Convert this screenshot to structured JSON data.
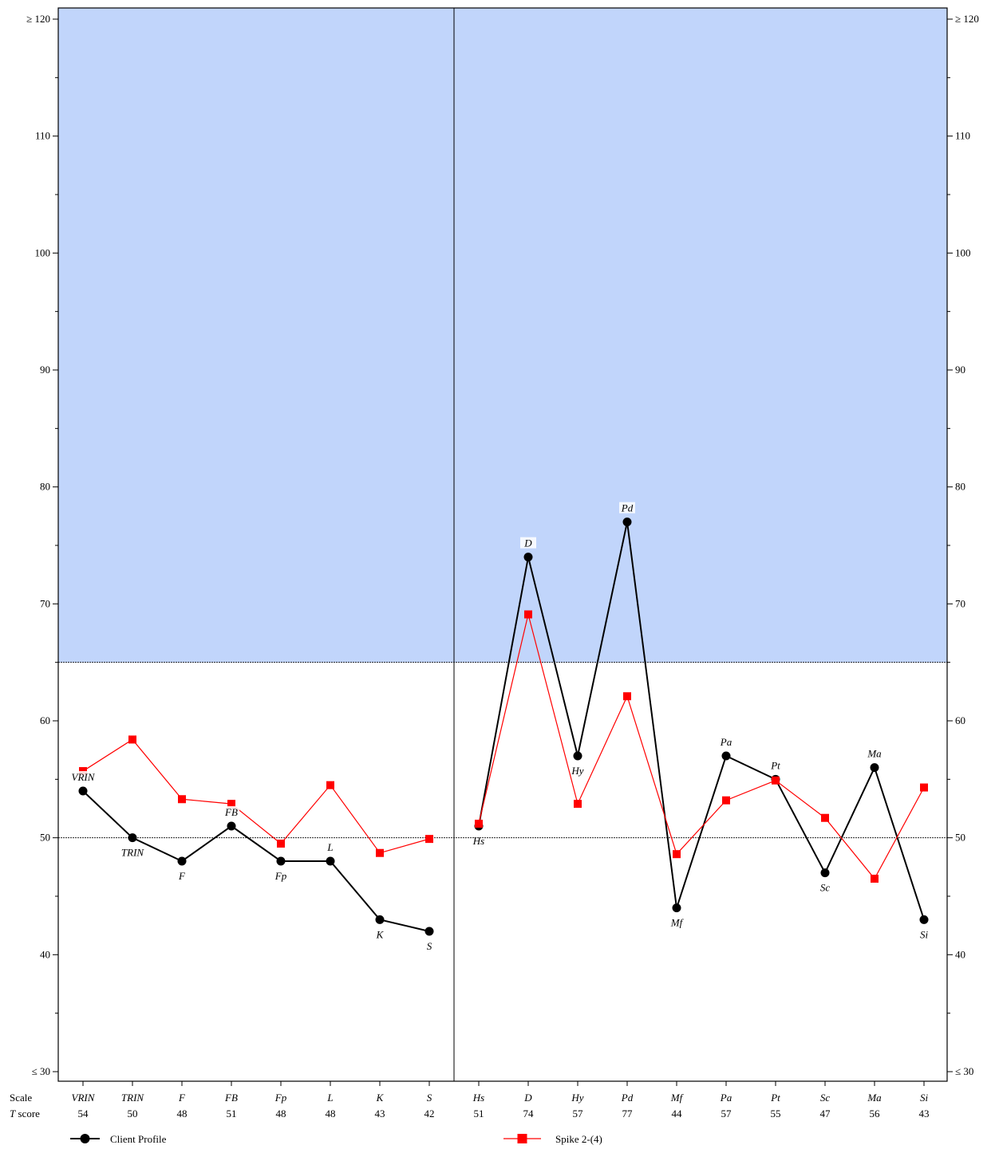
{
  "chart_data": {
    "type": "line",
    "ylim": [
      30,
      120
    ],
    "yticks": [
      30,
      40,
      50,
      60,
      70,
      80,
      90,
      100,
      110,
      120
    ],
    "ytick_labels": [
      "≤ 30",
      "40",
      "50",
      "60",
      "70",
      "80",
      "90",
      "100",
      "110",
      "≥ 120"
    ],
    "shaded_region": {
      "from": 65,
      "to": 120,
      "color": "#c1d5fb"
    },
    "reference_lines": [
      50,
      65
    ],
    "row_labels": {
      "scale": "Scale",
      "tscore": "T score"
    },
    "categories": [
      "VRIN",
      "TRIN",
      "F",
      "FB",
      "Fp",
      "L",
      "K",
      "S",
      "Hs",
      "D",
      "Hy",
      "Pd",
      "Mf",
      "Pa",
      "Pt",
      "Sc",
      "Ma",
      "Si"
    ],
    "divider_after_index": 7,
    "series": [
      {
        "name": "Client Profile",
        "color": "#000000",
        "marker": "circle",
        "values": [
          54,
          50,
          48,
          51,
          48,
          48,
          43,
          42,
          51,
          74,
          57,
          77,
          44,
          57,
          55,
          47,
          56,
          43
        ]
      },
      {
        "name": "Spike 2-(4)",
        "color": "#ff0000",
        "marker": "square",
        "values": [
          55.7,
          58.4,
          53.3,
          52.9,
          49.5,
          54.5,
          48.7,
          49.9,
          51.2,
          69.1,
          52.9,
          62.1,
          48.6,
          53.2,
          54.9,
          51.7,
          46.5,
          54.3
        ]
      }
    ],
    "tscores": [
      "54",
      "50",
      "48",
      "51",
      "48",
      "48",
      "43",
      "42",
      "51",
      "74",
      "57",
      "77",
      "44",
      "57",
      "55",
      "47",
      "56",
      "43"
    ],
    "label_positions": [
      "above",
      "below",
      "below",
      "above",
      "below",
      "above",
      "below",
      "below",
      "below",
      "above",
      "below",
      "above",
      "below",
      "above",
      "above",
      "below",
      "above",
      "below"
    ]
  }
}
